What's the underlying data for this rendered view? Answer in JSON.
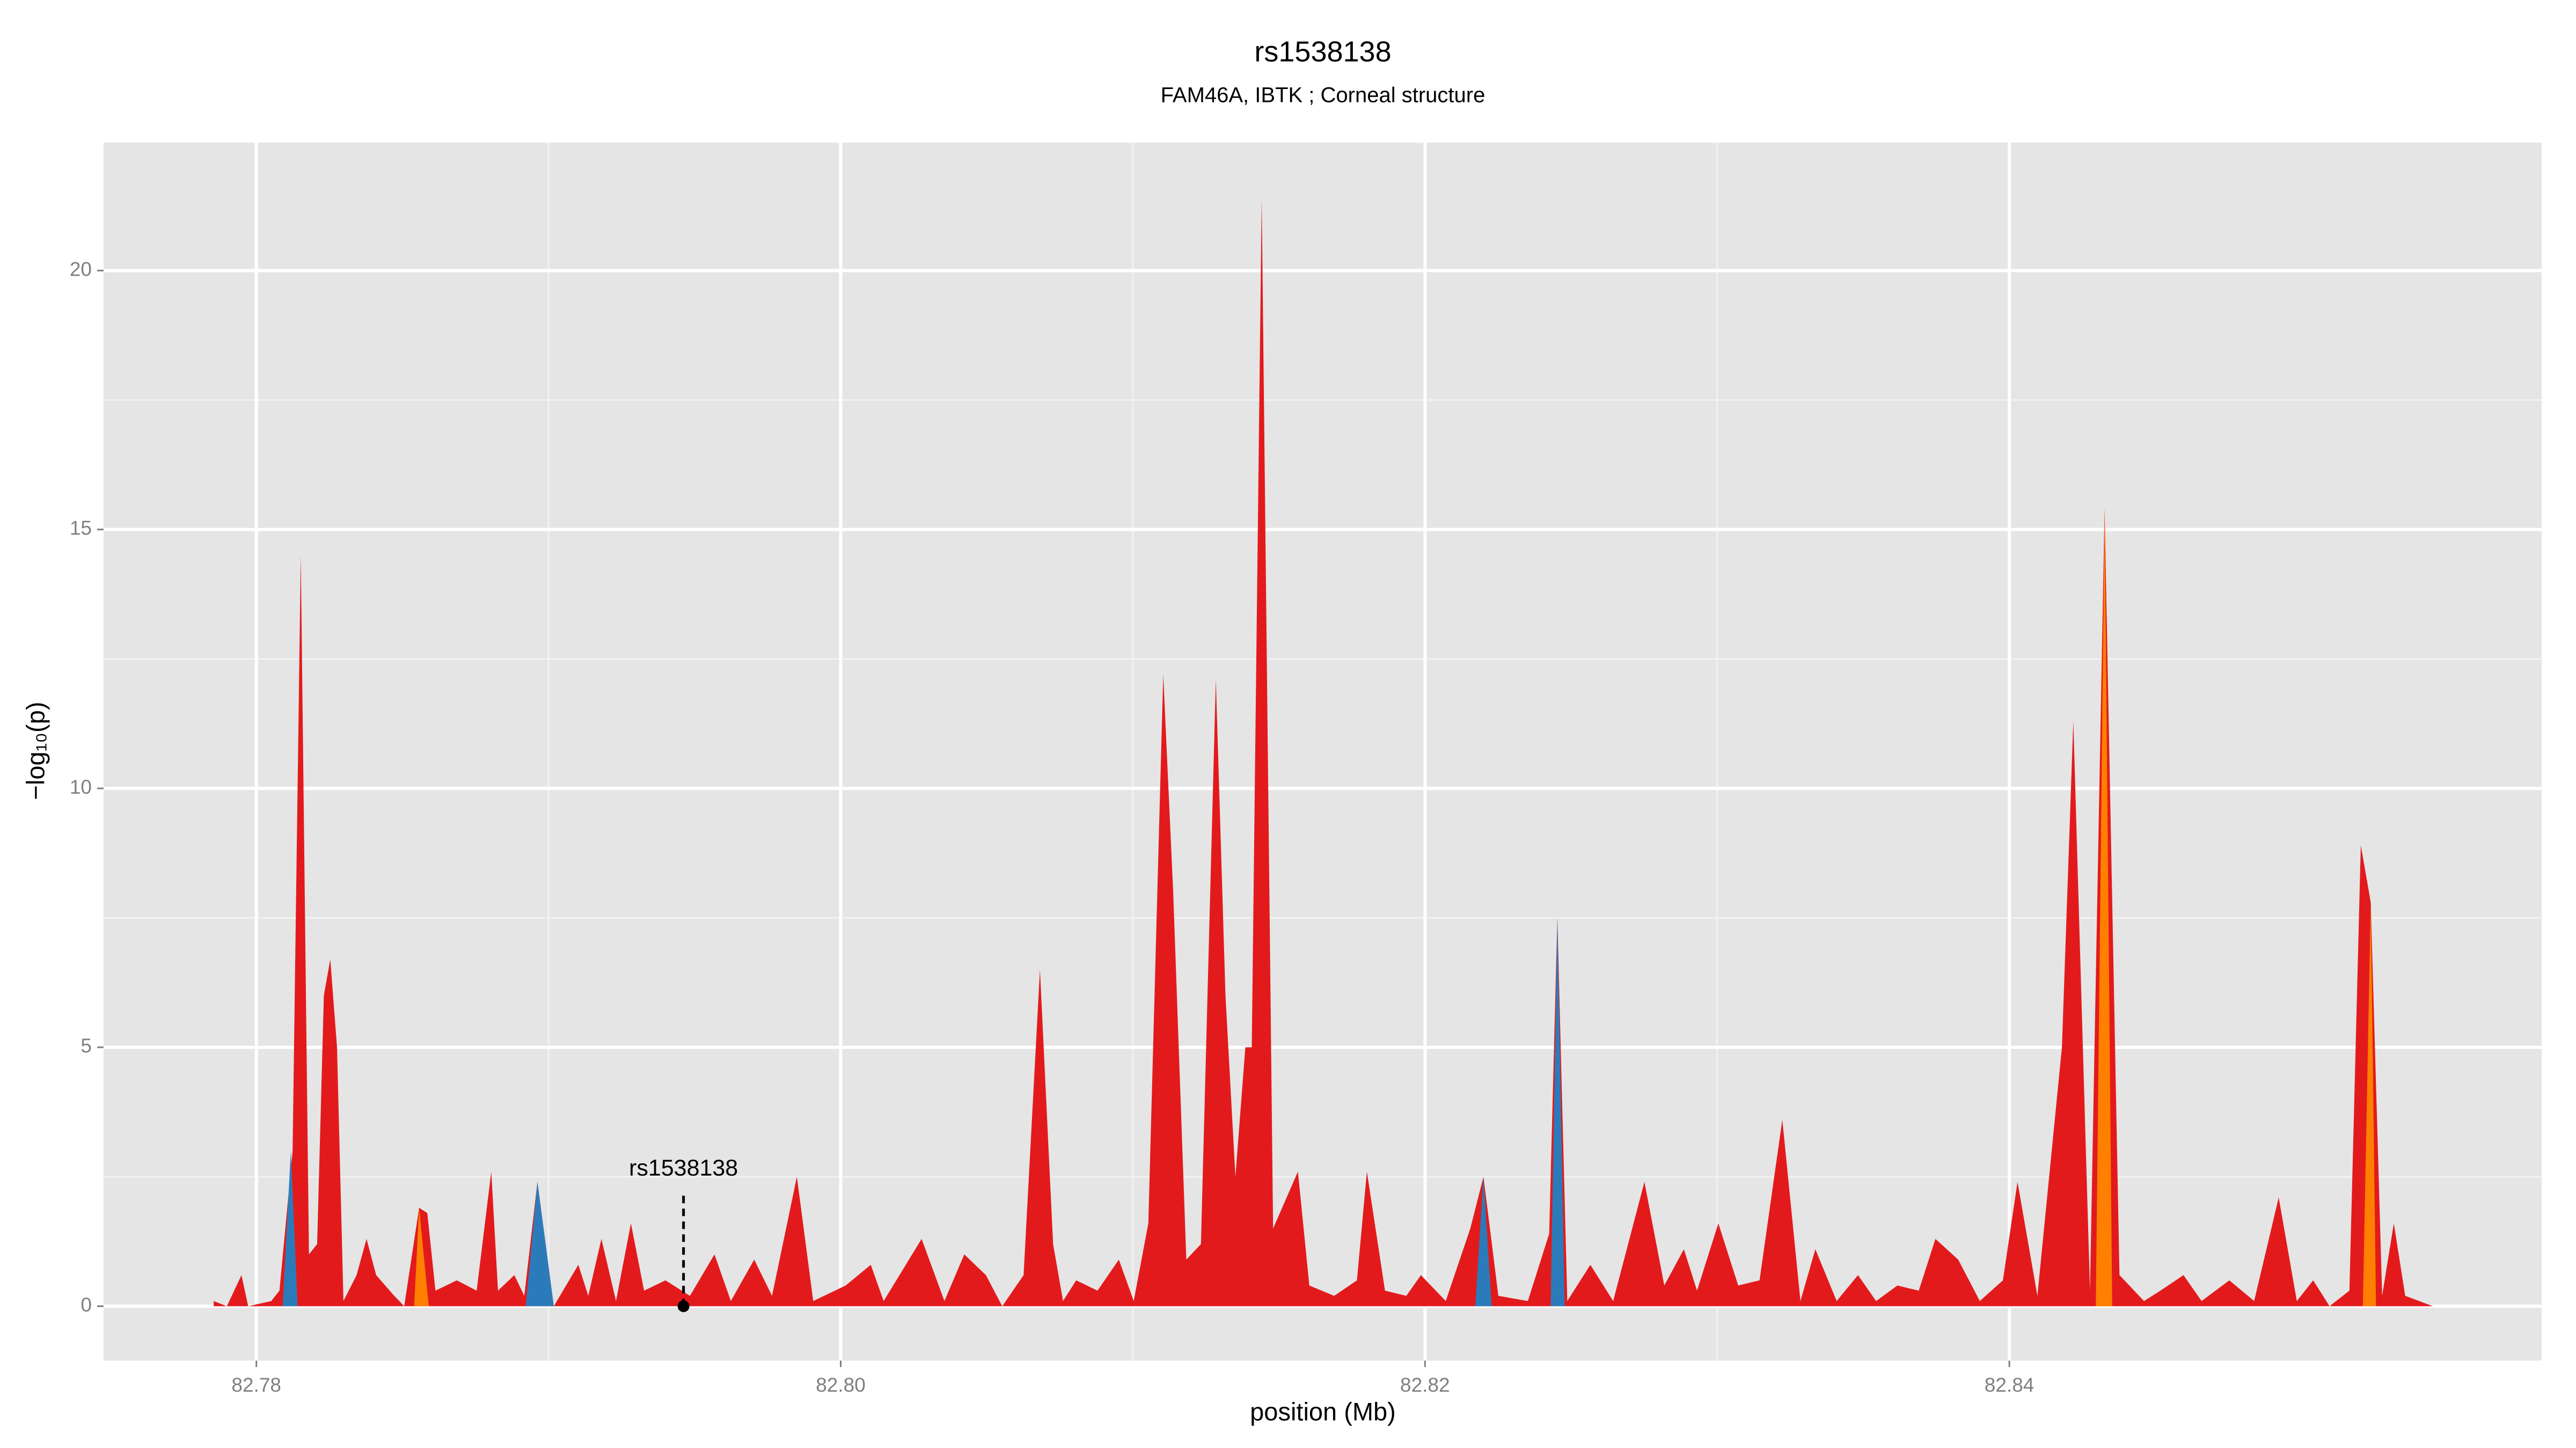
{
  "chart_data": {
    "type": "area",
    "title": "rs1538138",
    "subtitle": "FAM46A, IBTK ; Corneal structure",
    "x_label": "position (Mb)",
    "y_label": "−log₁₀(p)",
    "xlim": [
      82.77477,
      82.85822
    ],
    "ylim": [
      -1.05,
      22.47
    ],
    "xticks": [
      82.78,
      {
        "value": 82.8,
        "label": "82.80"
      },
      82.82,
      82.84
    ],
    "yticks": [
      0,
      5,
      10,
      15,
      20
    ],
    "grid": true,
    "series": [
      {
        "color": "#e31a1c",
        "x": [
          82.77854,
          82.77899,
          82.77949,
          82.77972,
          82.78051,
          82.78079,
          82.78124,
          82.78152,
          82.7818,
          82.78208,
          82.78231,
          82.78253,
          82.78276,
          82.78298,
          82.78343,
          82.78377,
          82.7841,
          82.78472,
          82.78506,
          82.78557,
          82.78585,
          82.78613,
          82.78686,
          82.78754,
          82.78804,
          82.78827,
          82.78883,
          82.78917,
          82.78962,
          82.79018,
          82.79102,
          82.79136,
          82.79181,
          82.79231,
          82.79282,
          82.79327,
          82.794,
          82.79484,
          82.79568,
          82.79624,
          82.79704,
          82.79765,
          82.7985,
          82.79906,
          82.80017,
          82.80103,
          82.80147,
          82.80277,
          82.80355,
          82.80423,
          82.80497,
          82.80553,
          82.80626,
          82.80682,
          82.80727,
          82.80761,
          82.80806,
          82.80879,
          82.80952,
          82.81003,
          82.81053,
          82.81104,
          82.81138,
          82.81183,
          82.81233,
          82.81284,
          82.81317,
          82.81351,
          82.81385,
          82.81407,
          82.81441,
          82.8148,
          82.81565,
          82.81604,
          82.81689,
          82.81767,
          82.81801,
          82.81863,
          82.81936,
          82.81986,
          82.82071,
          82.82155,
          82.822,
          82.82251,
          82.82352,
          82.82425,
          82.82453,
          82.82487,
          82.82566,
          82.82644,
          82.82751,
          82.82819,
          82.82886,
          82.82931,
          82.83004,
          82.83072,
          82.83145,
          82.83223,
          82.83285,
          82.83336,
          82.83409,
          82.83482,
          82.83544,
          82.83617,
          82.8369,
          82.83747,
          82.83825,
          82.83899,
          82.83978,
          82.84028,
          82.84096,
          82.8418,
          82.84219,
          82.84276,
          82.84326,
          82.84377,
          82.84461,
          82.84517,
          82.84596,
          82.84658,
          82.84753,
          82.84838,
          82.84922,
          82.84984,
          82.8504,
          82.85096,
          82.85164,
          82.85203,
          82.85237,
          82.85276,
          82.85316,
          82.85355,
          82.8545
        ],
        "values": [
          0.1,
          0,
          0.6,
          0,
          0.1,
          0.3,
          3,
          14.5,
          1,
          1.2,
          6,
          6.7,
          5,
          0.1,
          0.6,
          1.3,
          0.6,
          0.2,
          0,
          1.9,
          1.8,
          0.3,
          0.5,
          0.3,
          2.6,
          0.3,
          0.6,
          0.2,
          2.4,
          0,
          0.8,
          0.2,
          1.3,
          0.1,
          1.6,
          0.3,
          0.5,
          0.2,
          1,
          0.1,
          0.9,
          0.2,
          2.5,
          0.1,
          0.4,
          0.8,
          0.1,
          1.3,
          0.1,
          1,
          0.6,
          0,
          0.6,
          6.5,
          1.2,
          0.1,
          0.5,
          0.3,
          0.9,
          0.1,
          1.6,
          12.2,
          8,
          0.9,
          1.2,
          12.1,
          6,
          2.5,
          5,
          5,
          21.4,
          1.5,
          2.6,
          0.4,
          0.2,
          0.5,
          2.6,
          0.3,
          0.2,
          0.6,
          0.1,
          1.5,
          2.5,
          0.2,
          0.1,
          1.4,
          7.5,
          0.1,
          0.8,
          0.1,
          2.4,
          0.4,
          1.1,
          0.3,
          1.6,
          0.4,
          0.5,
          3.6,
          0.1,
          1.1,
          0.1,
          0.6,
          0.1,
          0.4,
          0.3,
          1.3,
          0.9,
          0.1,
          0.5,
          2.4,
          0.2,
          5,
          11.3,
          0.3,
          15.4,
          0.6,
          0.1,
          0.3,
          0.6,
          0.1,
          0.5,
          0.1,
          2.1,
          0.1,
          0.5,
          0,
          0.3,
          8.9,
          7.8,
          0.2,
          1.6,
          0.2,
          0
        ]
      },
      {
        "color": "#2b7bba",
        "x": [
          82.7809,
          82.78118,
          82.78141,
          82.78922,
          82.78962,
          82.79018,
          82.82172,
          82.822,
          82.82228,
          82.8243,
          82.82453,
          82.82478
        ],
        "values": [
          0,
          3,
          0,
          0,
          2.4,
          0,
          0,
          2.5,
          0,
          0,
          7.5,
          0
        ]
      },
      {
        "color": "#ff7f00",
        "x": [
          82.7854,
          82.78557,
          82.7859,
          82.84296,
          82.84326,
          82.84352,
          82.8521,
          82.85237,
          82.85255
        ],
        "values": [
          0,
          1.9,
          0,
          0,
          15.4,
          0,
          0,
          7.8,
          0
        ]
      }
    ],
    "annotation": {
      "text": "rs1538138",
      "x": 82.79462,
      "y": 0
    }
  }
}
